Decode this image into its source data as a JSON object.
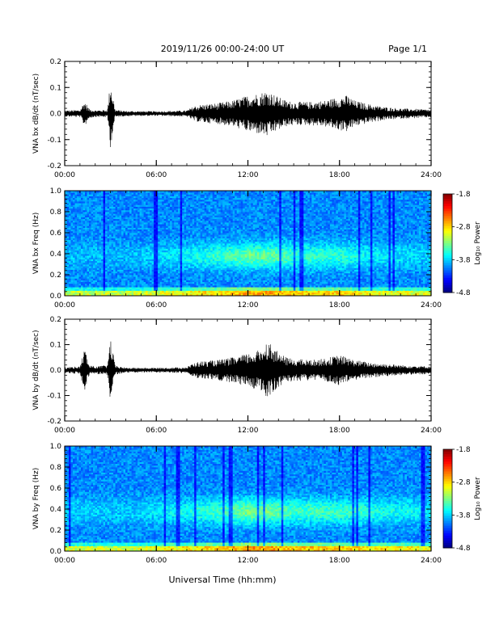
{
  "header": {
    "title": "2019/11/26  00:00-24:00 UT",
    "page": "Page 1/1"
  },
  "xlabel": "Universal Time (hh:mm)",
  "chart_data": [
    {
      "type": "line",
      "ylabel": "VNA bx dB/dt (nT/sec)",
      "xlim": [
        0,
        24
      ],
      "ylim": [
        -0.2,
        0.2
      ],
      "xticks": [
        "00:00",
        "06:00",
        "12:00",
        "18:00",
        "24:00"
      ],
      "yticks": [
        "-0.2",
        "-0.1",
        "0.0",
        "0.1",
        "0.2"
      ],
      "envelope": {
        "x": [
          0,
          1,
          1.3,
          1.6,
          2,
          2.8,
          3.0,
          3.3,
          4,
          6,
          8,
          8.5,
          9,
          10,
          11,
          12,
          12.8,
          13.3,
          13.8,
          14.5,
          15,
          16,
          17,
          18,
          18.5,
          19,
          20,
          21,
          22,
          23,
          24
        ],
        "amp": [
          0.012,
          0.014,
          0.05,
          0.018,
          0.013,
          0.015,
          0.13,
          0.015,
          0.01,
          0.009,
          0.012,
          0.03,
          0.035,
          0.04,
          0.05,
          0.07,
          0.08,
          0.09,
          0.07,
          0.05,
          0.045,
          0.045,
          0.05,
          0.065,
          0.07,
          0.05,
          0.035,
          0.025,
          0.02,
          0.018,
          0.015
        ]
      }
    },
    {
      "type": "heatmap",
      "ylabel": "VNA bx Freq (Hz)",
      "xlim": [
        0,
        24
      ],
      "ylim": [
        0.0,
        1.0
      ],
      "xticks": [
        "00:00",
        "06:00",
        "12:00",
        "18:00",
        "24:00"
      ],
      "yticks": [
        "0.0",
        "0.2",
        "0.4",
        "0.6",
        "0.8",
        "1.0"
      ],
      "colorbar": {
        "label": "Log₁₀ Power",
        "ticks": [
          "-1.8",
          "-2.8",
          "-3.8",
          "-4.8"
        ],
        "range": [
          -4.8,
          -1.8
        ]
      },
      "activity": {
        "x": [
          0,
          4,
          8,
          10,
          12,
          13.8,
          15,
          18,
          20,
          24
        ],
        "level": [
          0.15,
          0.12,
          0.3,
          0.45,
          0.6,
          0.6,
          0.45,
          0.45,
          0.3,
          0.2
        ]
      }
    },
    {
      "type": "line",
      "ylabel": "VNA by dB/dt (nT/sec)",
      "xlim": [
        0,
        24
      ],
      "ylim": [
        -0.2,
        0.2
      ],
      "xticks": [
        "00:00",
        "06:00",
        "12:00",
        "18:00",
        "24:00"
      ],
      "yticks": [
        "-0.2",
        "-0.1",
        "0.0",
        "0.1",
        "0.2"
      ],
      "envelope": {
        "x": [
          0,
          1,
          1.3,
          1.6,
          2,
          2.8,
          3.0,
          3.3,
          4,
          6,
          8,
          8.5,
          9,
          10,
          11,
          12,
          12.8,
          13.3,
          13.8,
          14.5,
          15,
          16,
          17,
          18,
          18.5,
          19,
          20,
          21,
          22,
          23,
          24
        ],
        "amp": [
          0.012,
          0.015,
          0.09,
          0.02,
          0.015,
          0.02,
          0.13,
          0.018,
          0.01,
          0.009,
          0.012,
          0.03,
          0.035,
          0.04,
          0.05,
          0.065,
          0.08,
          0.12,
          0.08,
          0.05,
          0.045,
          0.04,
          0.045,
          0.06,
          0.05,
          0.04,
          0.03,
          0.025,
          0.02,
          0.018,
          0.015
        ]
      }
    },
    {
      "type": "heatmap",
      "ylabel": "VNA by Freq (Hz)",
      "xlim": [
        0,
        24
      ],
      "ylim": [
        0.0,
        1.0
      ],
      "xticks": [
        "00:00",
        "06:00",
        "12:00",
        "18:00",
        "24:00"
      ],
      "yticks": [
        "0.0",
        "0.2",
        "0.4",
        "0.6",
        "0.8",
        "1.0"
      ],
      "colorbar": {
        "label": "Log₁₀ Power",
        "ticks": [
          "-1.8",
          "-2.8",
          "-3.8",
          "-4.8"
        ],
        "range": [
          -4.8,
          -1.8
        ]
      },
      "activity": {
        "x": [
          0,
          4,
          8,
          10,
          12,
          13.8,
          15,
          18,
          20,
          24
        ],
        "level": [
          0.2,
          0.18,
          0.35,
          0.5,
          0.65,
          0.62,
          0.5,
          0.5,
          0.4,
          0.3
        ]
      }
    }
  ]
}
